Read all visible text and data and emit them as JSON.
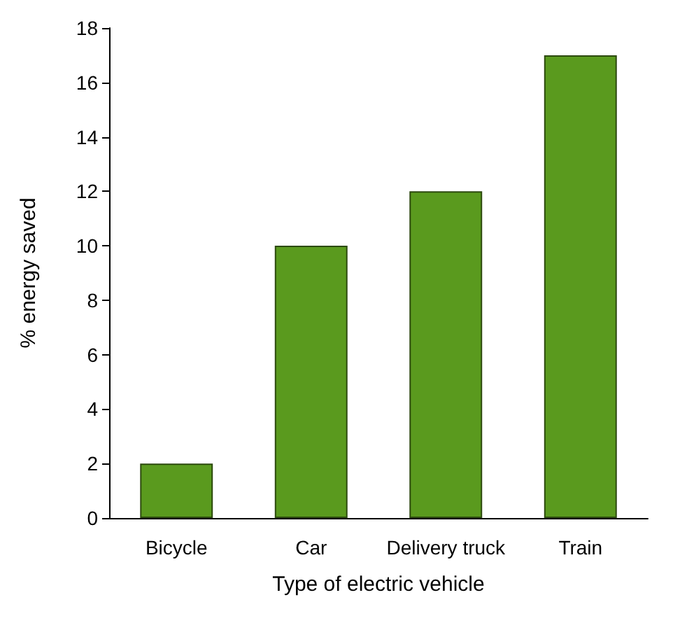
{
  "chart_data": {
    "type": "bar",
    "xlabel": "Type of electric vehicle",
    "ylabel": "% energy saved",
    "categories": [
      "Bicycle",
      "Car",
      "Delivery truck",
      "Train"
    ],
    "values": [
      2,
      10,
      12,
      17
    ],
    "color": "#5a9a1e",
    "ylim": [
      0,
      18
    ],
    "yticks": [
      0,
      2,
      4,
      6,
      8,
      10,
      12,
      14,
      16,
      18
    ],
    "grid": false
  }
}
